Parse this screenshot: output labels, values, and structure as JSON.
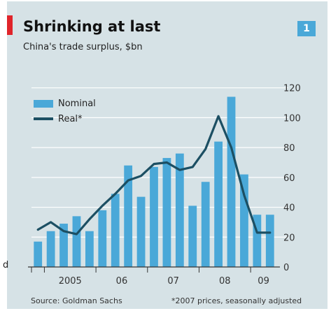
{
  "header": {
    "title": "Shrinking at last",
    "subtitle": "China's trade surplus, $bn",
    "badge": "1"
  },
  "footer": {
    "source": "Source: Goldman Sachs",
    "note": "*2007 prices, seasonally adjusted"
  },
  "stray_text": "d",
  "colors": {
    "nominal": "#4aa8d8",
    "real": "#1c4f63",
    "background": "#d6e2e6",
    "accent": "#e0242a"
  },
  "chart_data": {
    "type": "bar",
    "title": "Shrinking at last",
    "subtitle": "China's trade surplus, $bn",
    "x": [
      "2004Q4",
      "2005Q1",
      "2005Q2",
      "2005Q3",
      "2005Q4",
      "2006Q1",
      "2006Q2",
      "2006Q3",
      "2006Q4",
      "2007Q1",
      "2007Q2",
      "2007Q3",
      "2007Q4",
      "2008Q1",
      "2008Q2",
      "2008Q3",
      "2008Q4",
      "2009Q1",
      "2009Q2"
    ],
    "x_tick_labels": [
      "2005",
      "06",
      "07",
      "08",
      "09"
    ],
    "y_ticks": [
      0,
      20,
      40,
      60,
      80,
      100,
      120
    ],
    "ylim": [
      0,
      125
    ],
    "y_axis_position": "right",
    "series": [
      {
        "name": "Nominal",
        "type": "bar",
        "values": [
          17,
          24,
          29,
          34,
          24,
          38,
          49,
          68,
          47,
          67,
          73,
          76,
          41,
          57,
          84,
          114,
          62,
          35,
          35
        ]
      },
      {
        "name": "Real*",
        "type": "line",
        "values": [
          25,
          30,
          24,
          22,
          32,
          41,
          49,
          58,
          61,
          69,
          70,
          65,
          67,
          79,
          101,
          80,
          48,
          23,
          23
        ]
      }
    ],
    "legend": "top-left",
    "grid": true
  }
}
